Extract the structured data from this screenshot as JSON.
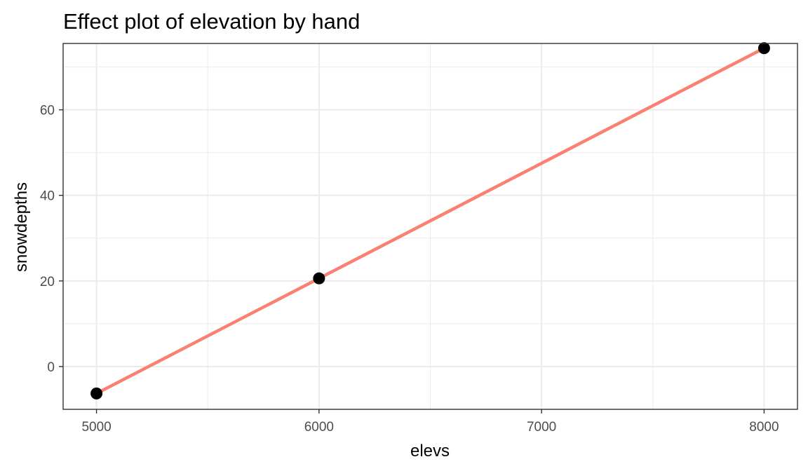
{
  "chart_data": {
    "type": "line",
    "title": "Effect plot of elevation by hand",
    "xlabel": "elevs",
    "ylabel": "snowdepths",
    "xlim": [
      4850,
      8150
    ],
    "ylim": [
      -10,
      75.5
    ],
    "x_ticks": [
      5000,
      6000,
      7000,
      8000
    ],
    "x_tick_labels": [
      "5000",
      "6000",
      "7000",
      "8000"
    ],
    "y_ticks": [
      0,
      20,
      40,
      60
    ],
    "y_tick_labels": [
      "0",
      "20",
      "40",
      "60"
    ],
    "grid": true,
    "legend": "none",
    "points": {
      "x": [
        5000,
        6000,
        8000
      ],
      "y": [
        -6.3,
        20.6,
        74.4
      ]
    },
    "fit_line": {
      "x": [
        5000,
        8000
      ],
      "y": [
        -6.3,
        74.4
      ]
    },
    "colors": {
      "points": "#000000",
      "line": "#fa8072",
      "grid": "#ebebeb",
      "panel_border": "#333333",
      "tick_label": "#4d4d4d"
    }
  }
}
